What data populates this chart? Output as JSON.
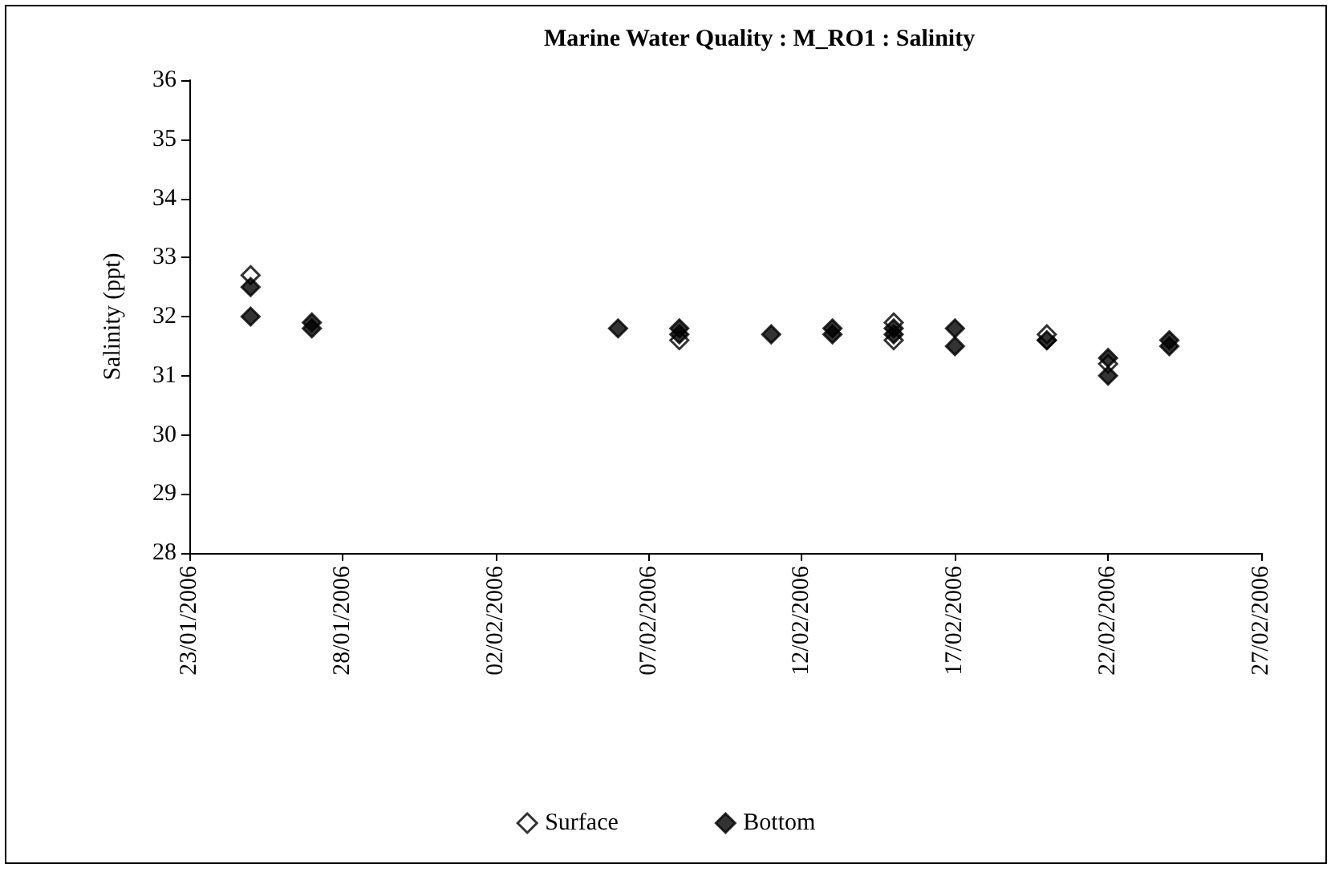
{
  "chart_data": {
    "type": "scatter",
    "title": "Marine Water Quality : M_RO1 : Salinity",
    "ylabel": "Salinity (ppt)",
    "xlim": [
      "2006-01-23",
      "2006-02-27"
    ],
    "xticks": [
      {
        "value": "2006-01-23",
        "label": "23/01/2006"
      },
      {
        "value": "2006-01-28",
        "label": "28/01/2006"
      },
      {
        "value": "2006-02-02",
        "label": "02/02/2006"
      },
      {
        "value": "2006-02-07",
        "label": "07/02/2006"
      },
      {
        "value": "2006-02-12",
        "label": "12/02/2006"
      },
      {
        "value": "2006-02-17",
        "label": "17/02/2006"
      },
      {
        "value": "2006-02-22",
        "label": "22/02/2006"
      },
      {
        "value": "2006-02-27",
        "label": "27/02/2006"
      }
    ],
    "ylim": [
      28,
      36
    ],
    "yticks": [
      28,
      29,
      30,
      31,
      32,
      33,
      34,
      35,
      36
    ],
    "grid": false,
    "legend": "bottom",
    "marker": "diamond",
    "series": [
      {
        "name": "Surface",
        "color": "#ffffff",
        "x": [
          "2006-01-25",
          "2006-02-08",
          "2006-02-15",
          "2006-02-15",
          "2006-02-20",
          "2006-02-20",
          "2006-02-22"
        ],
        "values": [
          32.7,
          31.6,
          31.6,
          31.9,
          31.6,
          31.7,
          31.2
        ]
      },
      {
        "name": "Bottom",
        "color": "#000000",
        "x": [
          "2006-01-25",
          "2006-01-25",
          "2006-01-27",
          "2006-01-27",
          "2006-02-06",
          "2006-02-08",
          "2006-02-08",
          "2006-02-11",
          "2006-02-13",
          "2006-02-13",
          "2006-02-15",
          "2006-02-15",
          "2006-02-17",
          "2006-02-17",
          "2006-02-20",
          "2006-02-22",
          "2006-02-22",
          "2006-02-24",
          "2006-02-24"
        ],
        "values": [
          32.5,
          32.0,
          31.9,
          31.8,
          31.8,
          31.7,
          31.8,
          31.7,
          31.7,
          31.8,
          31.7,
          31.8,
          31.5,
          31.8,
          31.6,
          31.3,
          31.0,
          31.5,
          31.6
        ]
      }
    ]
  }
}
